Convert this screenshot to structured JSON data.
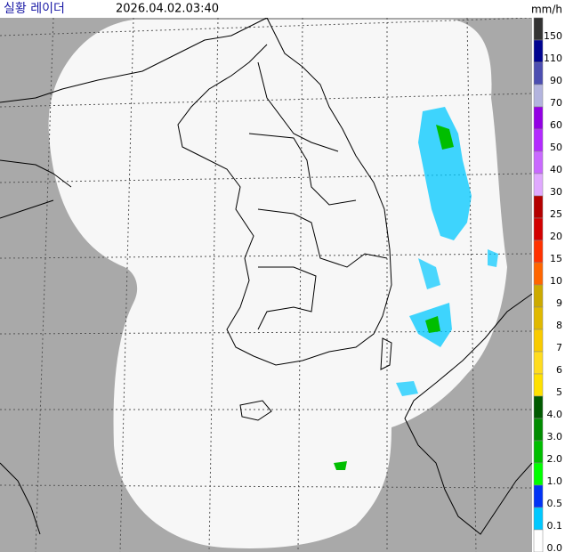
{
  "header": {
    "title": "실황 레이더",
    "timestamp": "2026.04.02.03:40",
    "unit": "mm/h"
  },
  "legend": {
    "items": [
      {
        "label": "150",
        "color": "#333333"
      },
      {
        "label": "110",
        "color": "#000390"
      },
      {
        "label": "90",
        "color": "#4c4eb1"
      },
      {
        "label": "70",
        "color": "#b3b4de"
      },
      {
        "label": "60",
        "color": "#9300e4"
      },
      {
        "label": "50",
        "color": "#b329ff"
      },
      {
        "label": "40",
        "color": "#c969ff"
      },
      {
        "label": "30",
        "color": "#e0a9ff"
      },
      {
        "label": "25",
        "color": "#b40000"
      },
      {
        "label": "20",
        "color": "#d20000"
      },
      {
        "label": "15",
        "color": "#ff3200"
      },
      {
        "label": "10",
        "color": "#ff6600"
      },
      {
        "label": "9",
        "color": "#ccaa00"
      },
      {
        "label": "8",
        "color": "#e0b900"
      },
      {
        "label": "7",
        "color": "#f9cb00"
      },
      {
        "label": "6",
        "color": "#ffdc1f"
      },
      {
        "label": "5",
        "color": "#ffe100"
      },
      {
        "label": "4.0",
        "color": "#005a00"
      },
      {
        "label": "3.0",
        "color": "#008c00"
      },
      {
        "label": "2.0",
        "color": "#00be00"
      },
      {
        "label": "1.0",
        "color": "#00ff00"
      },
      {
        "label": "0.5",
        "color": "#0033f5"
      },
      {
        "label": "0.1",
        "color": "#00c8ff"
      },
      {
        "label": "0.0",
        "color": "#ffffff"
      }
    ]
  }
}
